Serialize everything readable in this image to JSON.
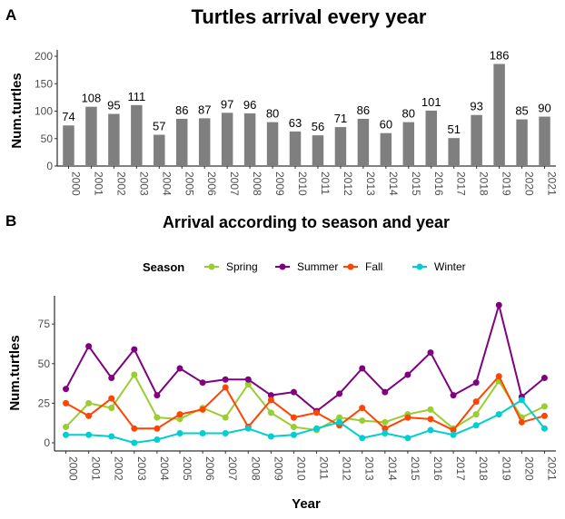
{
  "chart_data": [
    {
      "panel": "A",
      "type": "bar",
      "title": "Turtles arrival every year",
      "xlabel": "",
      "ylabel": "Num.turtles",
      "ylim": [
        0,
        200
      ],
      "yticks": [
        0,
        50,
        100,
        150,
        200
      ],
      "categories": [
        "2000",
        "2001",
        "2002",
        "2003",
        "2004",
        "2005",
        "2006",
        "2007",
        "2008",
        "2009",
        "2010",
        "2011",
        "2012",
        "2013",
        "2014",
        "2015",
        "2016",
        "2017",
        "2018",
        "2019",
        "2020",
        "2021"
      ],
      "values": [
        74,
        108,
        95,
        111,
        57,
        86,
        87,
        97,
        96,
        80,
        63,
        56,
        71,
        86,
        60,
        80,
        101,
        51,
        93,
        186,
        85,
        90
      ],
      "bar_color": "#7f7f7f",
      "grid": false
    },
    {
      "panel": "B",
      "type": "line",
      "title": "Arrival according to season and year",
      "xlabel": "Year",
      "ylabel": "Num.turtles",
      "ylim": [
        0,
        90
      ],
      "yticks": [
        0,
        25,
        50,
        75
      ],
      "legend_title": "Season",
      "legend_position": "top",
      "categories": [
        "2000",
        "2001",
        "2002",
        "2003",
        "2004",
        "2005",
        "2006",
        "2007",
        "2008",
        "2009",
        "2010",
        "2011",
        "2012",
        "2013",
        "2014",
        "2015",
        "2016",
        "2017",
        "2018",
        "2019",
        "2020",
        "2021"
      ],
      "series": [
        {
          "name": "Spring",
          "color": "#9acd32",
          "values": [
            10,
            25,
            22,
            43,
            16,
            15,
            22,
            16,
            37,
            19,
            10,
            8,
            16,
            14,
            13,
            18,
            21,
            9,
            18,
            39,
            16,
            23
          ]
        },
        {
          "name": "Summer",
          "color": "#800080",
          "values": [
            34,
            61,
            41,
            59,
            30,
            47,
            38,
            40,
            40,
            30,
            32,
            20,
            31,
            47,
            32,
            43,
            57,
            30,
            38,
            87,
            29,
            41
          ]
        },
        {
          "name": "Fall",
          "color": "#ff4500",
          "values": [
            25,
            17,
            28,
            9,
            9,
            18,
            21,
            35,
            10,
            27,
            16,
            19,
            11,
            22,
            9,
            16,
            15,
            8,
            26,
            42,
            13,
            17
          ]
        },
        {
          "name": "Winter",
          "color": "#00ced1",
          "values": [
            5,
            5,
            4,
            0,
            2,
            6,
            6,
            6,
            9,
            4,
            5,
            9,
            13,
            3,
            6,
            3,
            8,
            5,
            11,
            18,
            27,
            9
          ]
        }
      ],
      "grid": false
    }
  ],
  "panel_labels": [
    "A",
    "B"
  ]
}
